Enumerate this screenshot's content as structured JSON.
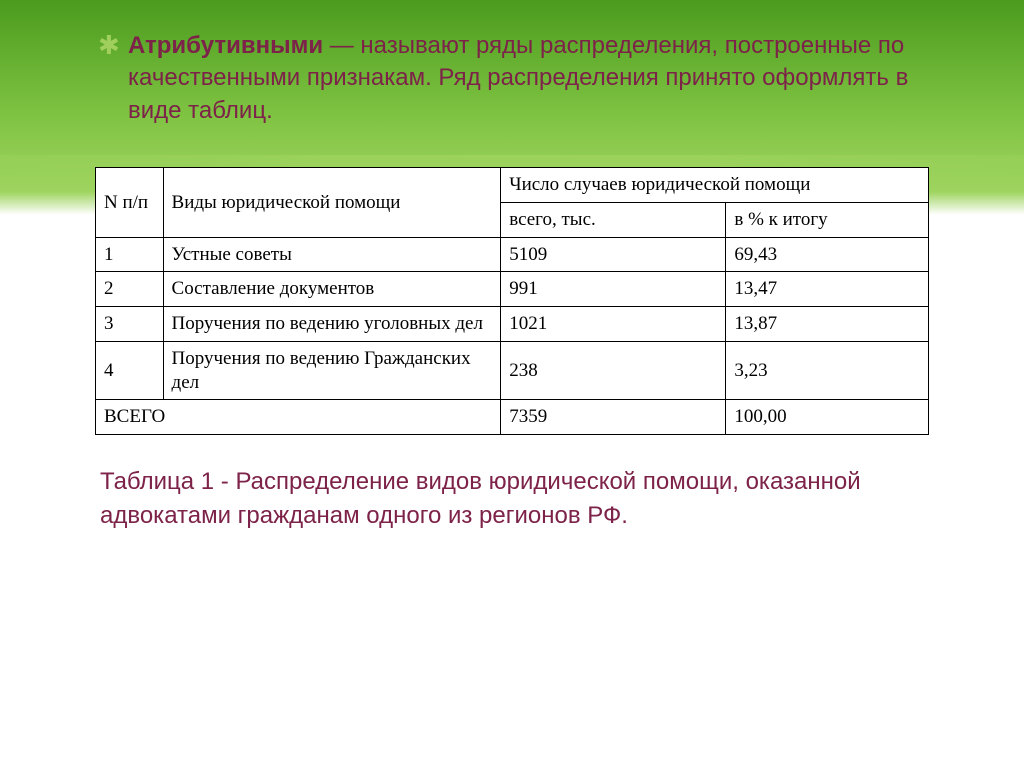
{
  "intro": {
    "bold": "Атрибутивными",
    "rest": " — называют ряды распределения, построенные по качественными признакам. Ряд распределения принято оформлять в виде таблиц."
  },
  "table": {
    "header": {
      "col_n": "N п/п",
      "col_type": "Виды юридической помощи",
      "col_cases_span": "Число случаев юридической помощи",
      "col_total": "всего, тыс.",
      "col_pct": "в % к итогу"
    },
    "rows": [
      {
        "n": "1",
        "type": "Устные советы",
        "total": "5109",
        "pct": "69,43"
      },
      {
        "n": "2",
        "type": "Составление документов",
        "total": "991",
        "pct": "13,47"
      },
      {
        "n": "3",
        "type": "Поручения по ведению уголовных дел",
        "total": "1021",
        "pct": "13,87"
      },
      {
        "n": "4",
        "type": "Поручения по ведению Гражданских дел",
        "total": "238",
        "pct": "3,23"
      }
    ],
    "footer": {
      "label": "ВСЕГО",
      "total": "7359",
      "pct": "100,00"
    }
  },
  "caption": "Таблица 1 - Распределение видов юридической помощи,   оказанной адвокатами гражданам одного из регионов РФ.",
  "style": {
    "text_color": "#7d2248",
    "table_border": "#000000",
    "bg_gradient_top": "#4b9b1e",
    "bg_gradient_mid": "#9ed45f",
    "bullet_color": "#a0cf5e",
    "intro_fontsize": 24,
    "caption_fontsize": 24,
    "table_fontsize": 19
  }
}
